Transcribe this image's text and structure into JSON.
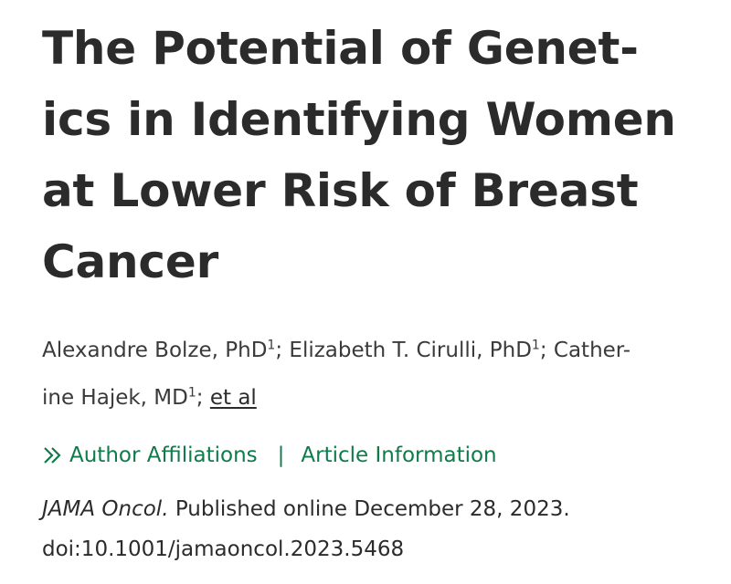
{
  "article": {
    "title_lines": [
      "The Potential of Genet-",
      "ics in Identifying Women",
      "at Lower Risk of Breast",
      "Cancer"
    ],
    "authors": {
      "line1": {
        "a1": "Alexandre Bolze, PhD",
        "a1_sup": "1",
        "sep1": "; ",
        "a2": "Elizabeth T. Cirulli, PhD",
        "a2_sup": "1",
        "sep2": "; ",
        "a3_part1": "Cather-"
      },
      "line2": {
        "a3_part2": "ine Hajek, MD",
        "a3_sup": "1",
        "sep3": "; ",
        "et_al": "et al"
      }
    },
    "links": {
      "affiliations": "Author Affiliations",
      "separator": "|",
      "article_info": "Article Information"
    },
    "citation": {
      "journal": "JAMA Oncol.",
      "published": " Published online December 28, 2023.",
      "doi": "doi:10.1001/jamaoncol.2023.5468"
    },
    "colors": {
      "link_green": "#0f7a4a",
      "text_dark": "#2b2b2b"
    },
    "icons": {
      "affiliations_toggle": "double-chevron-right-icon"
    }
  }
}
